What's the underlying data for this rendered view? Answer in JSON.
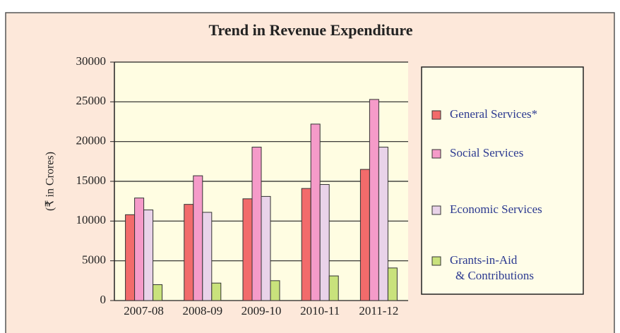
{
  "chart_data": {
    "type": "bar",
    "title": "Trend in Revenue Expenditure",
    "y_label": "(₹ in Crores)",
    "categories": [
      "2007-08",
      "2008-09",
      "2009-10",
      "2010-11",
      "2011-12"
    ],
    "series": [
      {
        "name": "General Services*",
        "color": "#f26b6b",
        "values": [
          10800,
          12100,
          12800,
          14100,
          16500
        ]
      },
      {
        "name": "Social Services",
        "color": "#f59bc9",
        "values": [
          12900,
          15700,
          19300,
          22200,
          25300
        ]
      },
      {
        "name": "Economic Services",
        "color": "#e9d3e9",
        "values": [
          11400,
          11100,
          13100,
          14600,
          19300
        ]
      },
      {
        "name": "Grants-in-Aid & Contributions",
        "color": "#c9e27c",
        "values": [
          2000,
          2200,
          2500,
          3100,
          4100
        ]
      }
    ],
    "ylim": [
      0,
      30000
    ],
    "yticks": [
      0,
      5000,
      10000,
      15000,
      20000,
      25000,
      30000
    ],
    "grid": true,
    "legend": "right"
  }
}
